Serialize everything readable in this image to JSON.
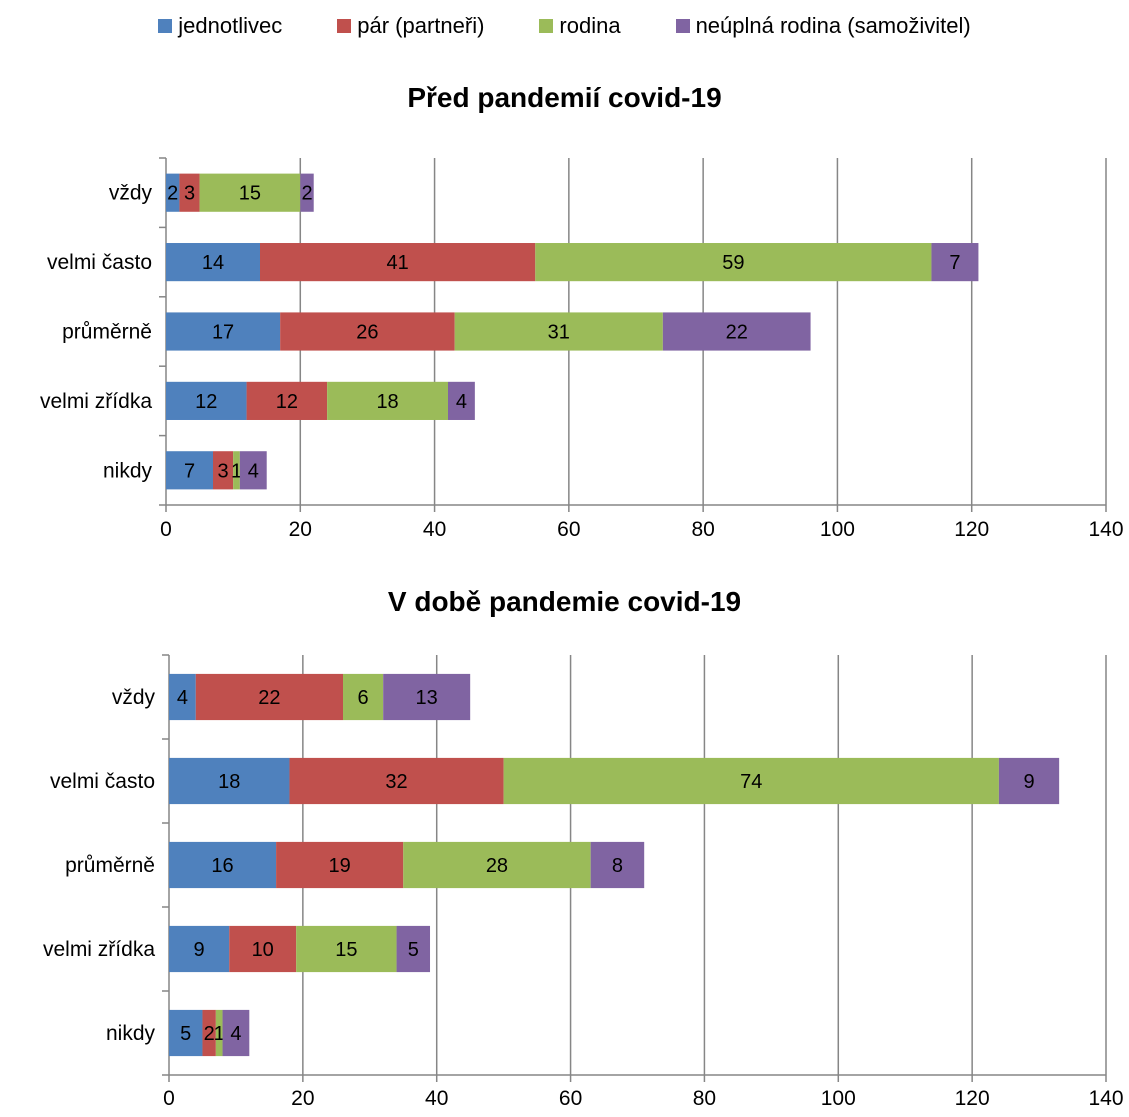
{
  "legend": {
    "items": [
      {
        "label": "jednotlivec",
        "color": "#4F81BD"
      },
      {
        "label": "pár (partneři)",
        "color": "#C0504D"
      },
      {
        "label": "rodina",
        "color": "#9BBB59"
      },
      {
        "label": "neúplná rodina (samoživitel)",
        "color": "#8064A2"
      }
    ]
  },
  "chart_data": [
    {
      "type": "bar",
      "orientation": "horizontal",
      "stacked": true,
      "title": "Před pandemií covid-19",
      "categories": [
        "vždy",
        "velmi často",
        "průměrně",
        "velmi zřídka",
        "nikdy"
      ],
      "series": [
        {
          "name": "jednotlivec",
          "values": [
            2,
            14,
            17,
            12,
            7
          ]
        },
        {
          "name": "pár (partneři)",
          "values": [
            3,
            41,
            26,
            12,
            3
          ]
        },
        {
          "name": "rodina",
          "values": [
            15,
            59,
            31,
            18,
            1
          ]
        },
        {
          "name": "neúplná rodina (samoživitel)",
          "values": [
            2,
            7,
            22,
            4,
            4
          ]
        }
      ],
      "xlim": [
        0,
        140
      ],
      "xticks": [
        0,
        20,
        40,
        60,
        80,
        100,
        120,
        140
      ],
      "grid": "vertical"
    },
    {
      "type": "bar",
      "orientation": "horizontal",
      "stacked": true,
      "title": "V době pandemie covid-19",
      "categories": [
        "vždy",
        "velmi často",
        "průměrně",
        "velmi zřídka",
        "nikdy"
      ],
      "series": [
        {
          "name": "jednotlivec",
          "values": [
            4,
            18,
            16,
            9,
            5
          ]
        },
        {
          "name": "pár (partneři)",
          "values": [
            22,
            32,
            19,
            10,
            2
          ]
        },
        {
          "name": "rodina",
          "values": [
            6,
            74,
            28,
            15,
            1
          ]
        },
        {
          "name": "neúplná rodina (samoživitel)",
          "values": [
            13,
            9,
            8,
            5,
            4
          ]
        }
      ],
      "xlim": [
        0,
        140
      ],
      "xticks": [
        0,
        20,
        40,
        60,
        80,
        100,
        120,
        140
      ],
      "grid": "vertical"
    }
  ]
}
